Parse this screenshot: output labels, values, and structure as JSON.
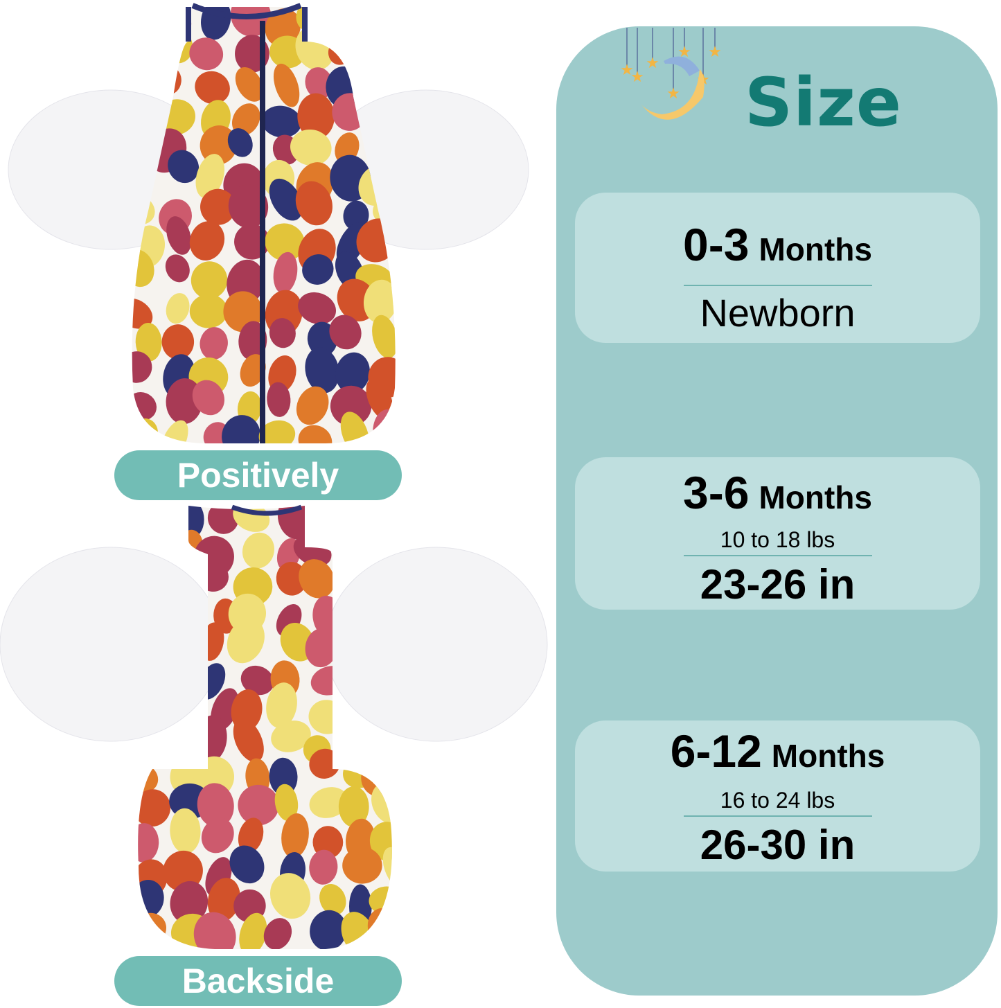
{
  "labels": {
    "front": "Positively",
    "back": "Backside"
  },
  "title": "Size",
  "sizes": [
    {
      "range": "0-3",
      "unit": "Months",
      "weight": "",
      "length": "Newborn"
    },
    {
      "range": "3-6",
      "unit": "Months",
      "weight": "10 to 18 lbs",
      "length": "23-26 in"
    },
    {
      "range": "6-12",
      "unit": "Months",
      "weight": "16 to 24 lbs",
      "length": "26-30 in"
    }
  ],
  "colors": {
    "panel": "#9dcbcb",
    "card": "#bfdfdf",
    "title": "#137a73",
    "pill": "#72bdb5",
    "pattern": [
      "#2e3575",
      "#d2522a",
      "#e2c43a",
      "#cd5a6d",
      "#a83a55",
      "#f0df78",
      "#e07a2a"
    ]
  },
  "icons": {
    "moon": "sleeping-moon-with-stars-icon"
  }
}
